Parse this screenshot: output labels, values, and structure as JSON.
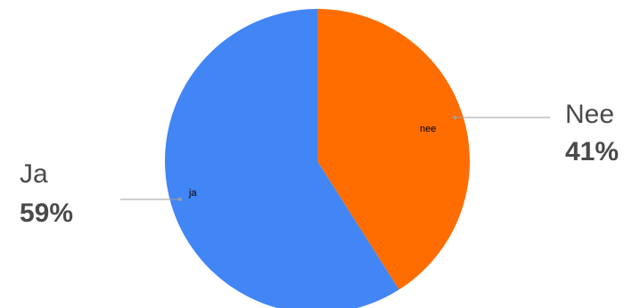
{
  "chart_data": {
    "type": "pie",
    "slices": [
      {
        "label": "nee",
        "callout_name": "Nee",
        "percent_label": "41%",
        "value": 41,
        "color": "#FF6D01"
      },
      {
        "label": "ja",
        "callout_name": "Ja",
        "percent_label": "59%",
        "value": 59,
        "color": "#4285F4"
      }
    ],
    "start": "12 o'clock",
    "direction": "clockwise",
    "leader_line_color": "#9e9e9e"
  }
}
